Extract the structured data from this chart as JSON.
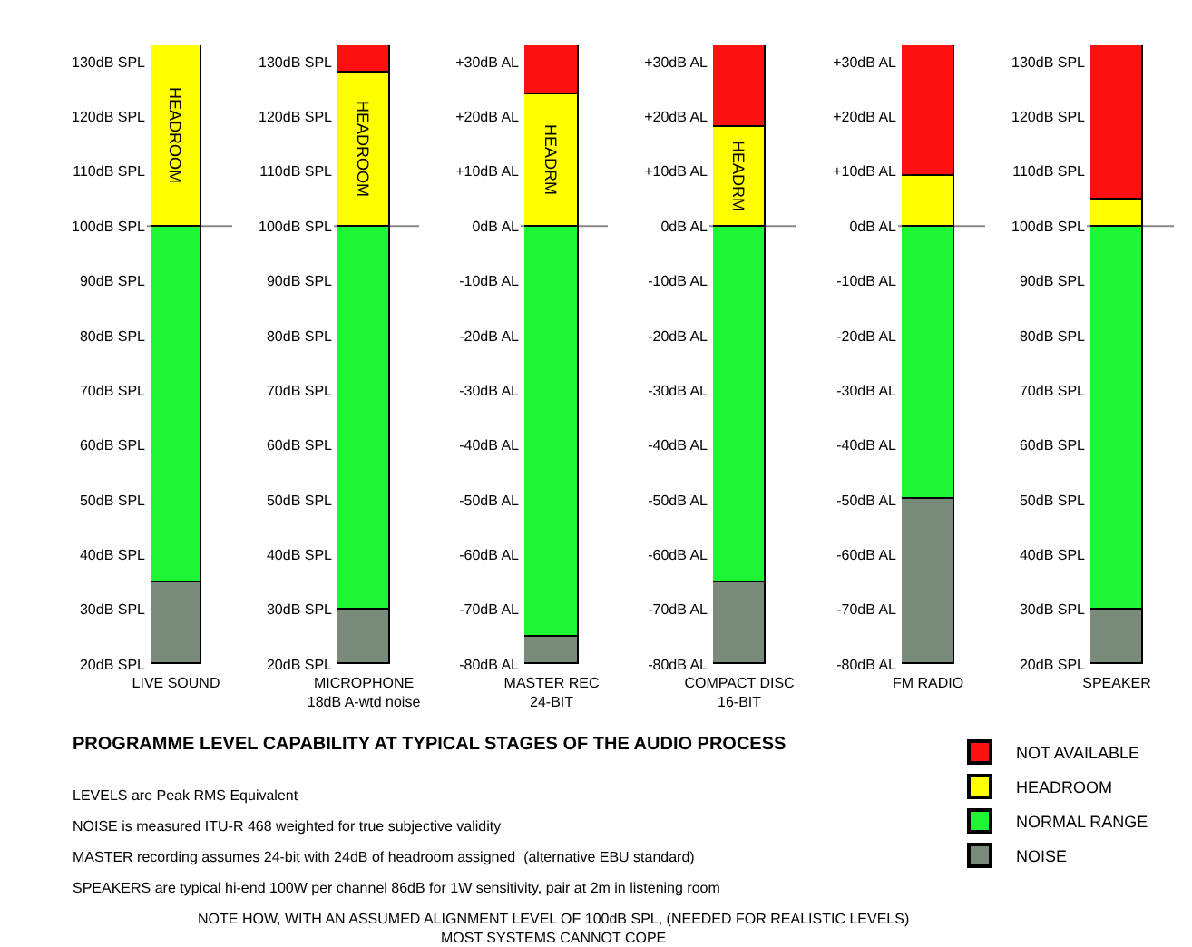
{
  "chart_data": [
    {
      "type": "bar",
      "title": "PROGRAMME LEVEL CAPABILITY AT TYPICAL STAGES OF THE AUDIO PROCESS",
      "annotations": [
        "LEVELS are Peak RMS Equivalent",
        "NOISE is measured ITU-R 468 weighted for true subjective validity",
        "MASTER recording assumes 24-bit with 24dB of headroom assigned  (alternative EBU standard)",
        "SPEAKERS are typical hi-end 100W per channel 86dB for 1W sensitivity, pair at 2m in listening room",
        "NOTE HOW, WITH AN ASSUMED ALIGNMENT LEVEL OF 100dB SPL, (NEEDED FOR REALISTIC LEVELS)\nMOST SYSTEMS CANNOT COPE"
      ],
      "legend": "bottom right",
      "categories": [
        "LIVE SOUND"
      ],
      "ylim": [
        20,
        133
      ],
      "yticks": [
        {
          "value": 20,
          "label": "20dB SPL"
        },
        {
          "value": 30,
          "label": "30dB SPL"
        },
        {
          "value": 40,
          "label": "40dB SPL"
        },
        {
          "value": 50,
          "label": "50dB SPL"
        },
        {
          "value": 60,
          "label": "60dB SPL"
        },
        {
          "value": 70,
          "label": "70dB SPL"
        },
        {
          "value": 80,
          "label": "80dB SPL"
        },
        {
          "value": 90,
          "label": "90dB SPL"
        },
        {
          "value": 100,
          "label": "100dB SPL"
        },
        {
          "value": 110,
          "label": "110dB SPL"
        },
        {
          "value": 120,
          "label": "120dB SPL"
        },
        {
          "value": 130,
          "label": "130dB SPL"
        }
      ],
      "ref_lines": [
        {
          "axis": "y",
          "value": 100,
          "color": "#888888"
        }
      ],
      "series": [
        {
          "name": "NOISE",
          "color": "#7a8a7a",
          "base": [
            20
          ],
          "values": [
            15
          ]
        },
        {
          "name": "NORMAL RANGE",
          "color": "#1ef534",
          "base": [
            35
          ],
          "values": [
            65
          ]
        },
        {
          "name": "HEADROOM",
          "color": "#ffff00",
          "base": [
            100
          ],
          "values": [
            33
          ],
          "value_labels": [
            "HEADROOM"
          ]
        },
        {
          "name": "NOT AVAILABLE",
          "color": "#ff1010",
          "base": [
            null
          ],
          "values": [
            null
          ]
        }
      ]
    },
    {
      "type": "bar",
      "categories": [
        "MICROPHONE\n18dB A-wtd noise"
      ],
      "ylim": [
        20,
        133
      ],
      "yticks": [
        {
          "value": 20,
          "label": "20dB SPL"
        },
        {
          "value": 30,
          "label": "30dB SPL"
        },
        {
          "value": 40,
          "label": "40dB SPL"
        },
        {
          "value": 50,
          "label": "50dB SPL"
        },
        {
          "value": 60,
          "label": "60dB SPL"
        },
        {
          "value": 70,
          "label": "70dB SPL"
        },
        {
          "value": 80,
          "label": "80dB SPL"
        },
        {
          "value": 90,
          "label": "90dB SPL"
        },
        {
          "value": 100,
          "label": "100dB SPL"
        },
        {
          "value": 110,
          "label": "110dB SPL"
        },
        {
          "value": 120,
          "label": "120dB SPL"
        },
        {
          "value": 130,
          "label": "130dB SPL"
        }
      ],
      "ref_lines": [
        {
          "axis": "y",
          "value": 100,
          "color": "#888888"
        }
      ],
      "series": [
        {
          "color": "#7a8a7a",
          "base": [
            20
          ],
          "values": [
            10
          ]
        },
        {
          "color": "#1ef534",
          "base": [
            30
          ],
          "values": [
            70
          ]
        },
        {
          "color": "#ffff00",
          "base": [
            100
          ],
          "values": [
            28
          ],
          "value_labels": [
            "HEADROOM"
          ]
        },
        {
          "color": "#ff1010",
          "base": [
            128
          ],
          "values": [
            5
          ]
        }
      ]
    },
    {
      "type": "bar",
      "categories": [
        "MASTER REC\n24-BIT"
      ],
      "ylim": [
        -80,
        33
      ],
      "yticks": [
        {
          "value": -80,
          "label": "-80dB AL"
        },
        {
          "value": -70,
          "label": "-70dB AL"
        },
        {
          "value": -60,
          "label": "-60dB AL"
        },
        {
          "value": -50,
          "label": "-50dB AL"
        },
        {
          "value": -40,
          "label": "-40dB AL"
        },
        {
          "value": -30,
          "label": "-30dB AL"
        },
        {
          "value": -20,
          "label": "-20dB AL"
        },
        {
          "value": -10,
          "label": "-10dB AL"
        },
        {
          "value": 0,
          "label": "0dB AL"
        },
        {
          "value": 10,
          "label": "+10dB AL"
        },
        {
          "value": 20,
          "label": "+20dB AL"
        },
        {
          "value": 30,
          "label": "+30dB AL"
        }
      ],
      "ref_lines": [
        {
          "axis": "y",
          "value": 0,
          "color": "#888888"
        }
      ],
      "series": [
        {
          "color": "#7a8a7a",
          "base": [
            -80
          ],
          "values": [
            5
          ]
        },
        {
          "color": "#1ef534",
          "base": [
            -75
          ],
          "values": [
            75
          ]
        },
        {
          "color": "#ffff00",
          "base": [
            0
          ],
          "values": [
            24
          ],
          "value_labels": [
            "HEADRM"
          ]
        },
        {
          "color": "#ff1010",
          "base": [
            24
          ],
          "values": [
            9
          ]
        }
      ]
    },
    {
      "type": "bar",
      "categories": [
        "COMPACT DISC\n16-BIT"
      ],
      "ylim": [
        -80,
        33
      ],
      "yticks": [
        {
          "value": -80,
          "label": "-80dB AL"
        },
        {
          "value": -70,
          "label": "-70dB AL"
        },
        {
          "value": -60,
          "label": "-60dB AL"
        },
        {
          "value": -50,
          "label": "-50dB AL"
        },
        {
          "value": -40,
          "label": "-40dB AL"
        },
        {
          "value": -30,
          "label": "-30dB AL"
        },
        {
          "value": -20,
          "label": "-20dB AL"
        },
        {
          "value": -10,
          "label": "-10dB AL"
        },
        {
          "value": 0,
          "label": "0dB AL"
        },
        {
          "value": 10,
          "label": "+10dB AL"
        },
        {
          "value": 20,
          "label": "+20dB AL"
        },
        {
          "value": 30,
          "label": "+30dB AL"
        }
      ],
      "ref_lines": [
        {
          "axis": "y",
          "value": 0,
          "color": "#888888"
        }
      ],
      "series": [
        {
          "color": "#7a8a7a",
          "base": [
            -80
          ],
          "values": [
            15
          ]
        },
        {
          "color": "#1ef534",
          "base": [
            -65
          ],
          "values": [
            65
          ]
        },
        {
          "color": "#ffff00",
          "base": [
            0
          ],
          "values": [
            18
          ],
          "value_labels": [
            "HEADRM"
          ]
        },
        {
          "color": "#ff1010",
          "base": [
            18
          ],
          "values": [
            15
          ]
        }
      ]
    },
    {
      "type": "bar",
      "categories": [
        "FM RADIO"
      ],
      "ylim": [
        -80,
        33
      ],
      "yticks": [
        {
          "value": -80,
          "label": "-80dB AL"
        },
        {
          "value": -70,
          "label": "-70dB AL"
        },
        {
          "value": -60,
          "label": "-60dB AL"
        },
        {
          "value": -50,
          "label": "-50dB AL"
        },
        {
          "value": -40,
          "label": "-40dB AL"
        },
        {
          "value": -30,
          "label": "-30dB AL"
        },
        {
          "value": -20,
          "label": "-20dB AL"
        },
        {
          "value": -10,
          "label": "-10dB AL"
        },
        {
          "value": 0,
          "label": "0dB AL"
        },
        {
          "value": 10,
          "label": "+10dB AL"
        },
        {
          "value": 20,
          "label": "+20dB AL"
        },
        {
          "value": 30,
          "label": "+30dB AL"
        }
      ],
      "ref_lines": [
        {
          "axis": "y",
          "value": 0,
          "color": "#888888"
        }
      ],
      "series": [
        {
          "color": "#7a8a7a",
          "base": [
            -80
          ],
          "values": [
            30
          ]
        },
        {
          "color": "#1ef534",
          "base": [
            -50
          ],
          "values": [
            50
          ]
        },
        {
          "color": "#ffff00",
          "base": [
            0
          ],
          "values": [
            9
          ]
        },
        {
          "color": "#ff1010",
          "base": [
            9
          ],
          "values": [
            24
          ]
        }
      ]
    },
    {
      "type": "bar",
      "categories": [
        "SPEAKER"
      ],
      "ylim": [
        20,
        133
      ],
      "yticks": [
        {
          "value": 20,
          "label": "20dB SPL"
        },
        {
          "value": 30,
          "label": "30dB SPL"
        },
        {
          "value": 40,
          "label": "40dB SPL"
        },
        {
          "value": 50,
          "label": "50dB SPL"
        },
        {
          "value": 60,
          "label": "60dB SPL"
        },
        {
          "value": 70,
          "label": "70dB SPL"
        },
        {
          "value": 80,
          "label": "80dB SPL"
        },
        {
          "value": 90,
          "label": "90dB SPL"
        },
        {
          "value": 100,
          "label": "100dB SPL"
        },
        {
          "value": 110,
          "label": "110dB SPL"
        },
        {
          "value": 120,
          "label": "120dB SPL"
        },
        {
          "value": 130,
          "label": "130dB SPL"
        }
      ],
      "ref_lines": [
        {
          "axis": "y",
          "value": 100,
          "color": "#888888"
        }
      ],
      "series": [
        {
          "color": "#7a8a7a",
          "base": [
            20
          ],
          "values": [
            10
          ]
        },
        {
          "color": "#1ef534",
          "base": [
            30
          ],
          "values": [
            70
          ]
        },
        {
          "color": "#ffff00",
          "base": [
            100
          ],
          "values": [
            5
          ]
        },
        {
          "color": "#ff1010",
          "base": [
            105
          ],
          "values": [
            28
          ]
        }
      ]
    }
  ]
}
